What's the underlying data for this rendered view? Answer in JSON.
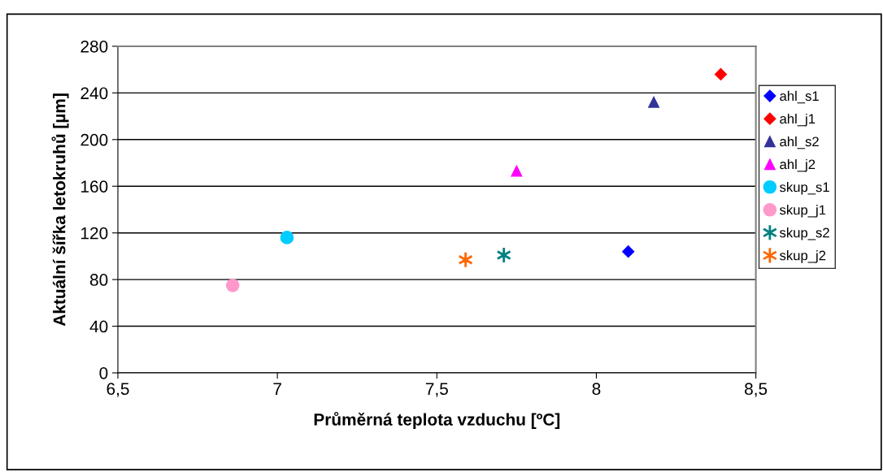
{
  "chart_data": {
    "type": "scatter",
    "xlabel": "Průměrná teplota vzduchu [ºC]",
    "ylabel": "Aktuální šířka letokruhů [µm]",
    "xlim": [
      6.5,
      8.5
    ],
    "xticks": [
      {
        "value": 6.5,
        "label": "6,5"
      },
      7,
      {
        "value": 7.5,
        "label": "7,5"
      },
      8,
      {
        "value": 8.5,
        "label": "8,5"
      }
    ],
    "ylim": [
      0,
      280
    ],
    "yticks": [
      0,
      40,
      80,
      120,
      160,
      200,
      240,
      280
    ],
    "grid": "y",
    "legend": "right",
    "series": [
      {
        "name": "ahl_s1",
        "color": "#0000ff",
        "marker": "diamond",
        "x": [
          8.1
        ],
        "values": [
          104
        ]
      },
      {
        "name": "ahl_j1",
        "color": "#ff0000",
        "marker": "diamond",
        "x": [
          8.39
        ],
        "values": [
          256
        ]
      },
      {
        "name": "ahl_s2",
        "color": "#333399",
        "marker": "triangle",
        "x": [
          8.18
        ],
        "values": [
          232
        ]
      },
      {
        "name": "ahl_j2",
        "color": "#ff00ff",
        "marker": "triangle",
        "x": [
          7.75
        ],
        "values": [
          173
        ]
      },
      {
        "name": "skup_s1",
        "color": "#00ccff",
        "marker": "circle",
        "x": [
          7.03
        ],
        "values": [
          116
        ]
      },
      {
        "name": "skup_j1",
        "color": "#ff99cc",
        "marker": "circle",
        "x": [
          6.86
        ],
        "values": [
          75
        ]
      },
      {
        "name": "skup_s2",
        "color": "#008080",
        "marker": "cross",
        "x": [
          7.71
        ],
        "values": [
          101
        ]
      },
      {
        "name": "skup_j2",
        "color": "#ff6600",
        "marker": "cross",
        "x": [
          7.59
        ],
        "values": [
          97
        ]
      }
    ]
  }
}
